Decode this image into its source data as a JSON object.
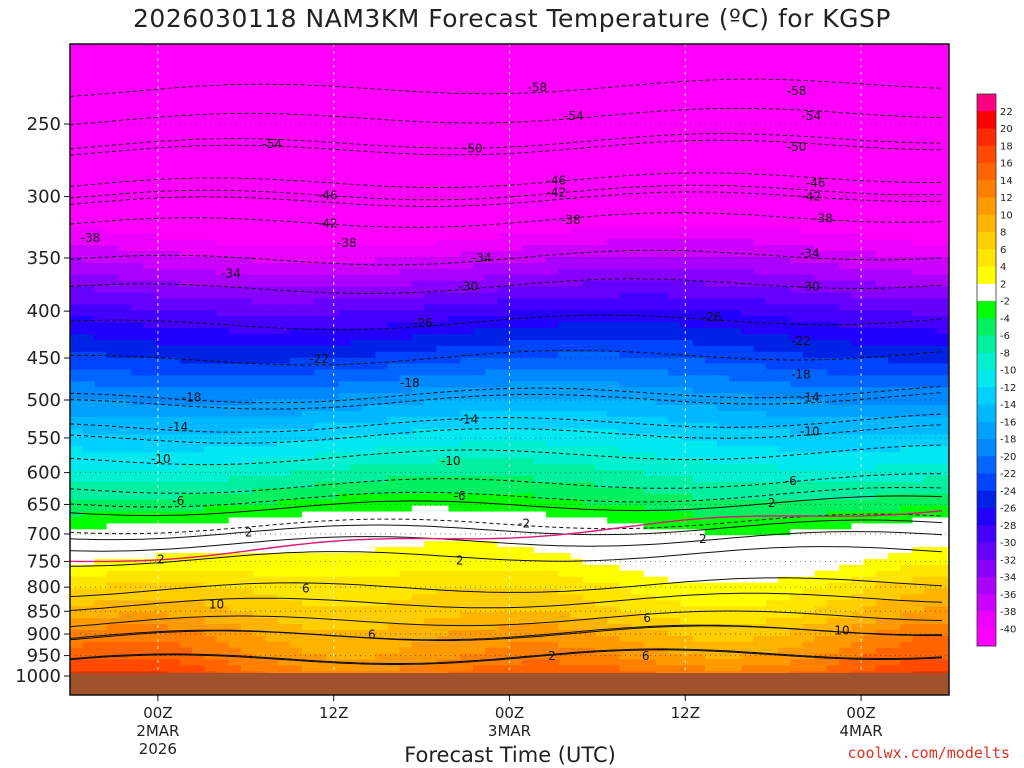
{
  "title": "2026030118 NAM3KM Forecast Temperature (ºC) for KGSP",
  "credit": "coolwx.com/modelts",
  "chart_data": {
    "type": "heatmap",
    "title": "2026030118 NAM3KM Forecast Temperature (ºC) for KGSP",
    "xlabel": "Forecast Time (UTC)",
    "ylabel": "",
    "y_ticks": [
      "250",
      "300",
      "350",
      "400",
      "450",
      "500",
      "550",
      "600",
      "650",
      "700",
      "750",
      "800",
      "850",
      "900",
      "950",
      "1000"
    ],
    "x_ticks": [
      {
        "line1": "00Z",
        "line2": "2MAR",
        "line3": "2026"
      },
      {
        "line1": "12Z",
        "line2": "",
        "line3": ""
      },
      {
        "line1": "00Z",
        "line2": "3MAR",
        "line3": ""
      },
      {
        "line1": "12Z",
        "line2": "",
        "line3": ""
      },
      {
        "line1": "00Z",
        "line2": "4MAR",
        "line3": ""
      }
    ],
    "x_ticks_hours": [
      6,
      18,
      30,
      42,
      54
    ],
    "x_range_hours": [
      0,
      60
    ],
    "y_range_hpa": [
      200,
      1000
    ],
    "colorbar_ticks": [
      "22",
      "20",
      "18",
      "16",
      "14",
      "12",
      "10",
      "8",
      "6",
      "4",
      "2",
      "-2",
      "-4",
      "-6",
      "-8",
      "-10",
      "-12",
      "-14",
      "-16",
      "-18",
      "-20",
      "-22",
      "-24",
      "-26",
      "-28",
      "-30",
      "-32",
      "-34",
      "-36",
      "-38",
      "-40"
    ],
    "colorbar_colors": [
      "#ff007f",
      "#ff0000",
      "#ff2a00",
      "#ff4a00",
      "#ff6400",
      "#ff7f00",
      "#ff9a00",
      "#ffb400",
      "#ffce00",
      "#ffe600",
      "#ffff00",
      "#ffffff",
      "#00ff00",
      "#00f060",
      "#00f0a0",
      "#00f0d0",
      "#00e8f0",
      "#00d0ff",
      "#00b8ff",
      "#00a0ff",
      "#0088ff",
      "#0066ff",
      "#0044ff",
      "#0022e6",
      "#2200ff",
      "#4400ff",
      "#6600ff",
      "#8800ff",
      "#aa00ff",
      "#cc00ff",
      "#ee00ff",
      "#ff00ff"
    ],
    "ground_color": "#a0522d",
    "contour_labels": [
      {
        "text": "-58",
        "t": 31.9,
        "p": 228
      },
      {
        "text": "-58",
        "t": 49.6,
        "p": 230
      },
      {
        "text": "-54",
        "t": 34.4,
        "p": 245
      },
      {
        "text": "-54",
        "t": 50.6,
        "p": 245
      },
      {
        "text": "-54",
        "t": 13.8,
        "p": 263
      },
      {
        "text": "-50",
        "t": 27.5,
        "p": 266
      },
      {
        "text": "-50",
        "t": 49.6,
        "p": 265
      },
      {
        "text": "-46",
        "t": 33.2,
        "p": 288
      },
      {
        "text": "-46",
        "t": 50.9,
        "p": 290
      },
      {
        "text": "-46",
        "t": 17.6,
        "p": 299
      },
      {
        "text": "-42",
        "t": 33.2,
        "p": 297
      },
      {
        "text": "-42",
        "t": 50.6,
        "p": 300
      },
      {
        "text": "-42",
        "t": 17.6,
        "p": 321
      },
      {
        "text": "-38",
        "t": 34.2,
        "p": 318
      },
      {
        "text": "-38",
        "t": 51.4,
        "p": 317
      },
      {
        "text": "-38",
        "t": 1.4,
        "p": 333
      },
      {
        "text": "-38",
        "t": 18.9,
        "p": 337
      },
      {
        "text": "-34",
        "t": 28.1,
        "p": 350
      },
      {
        "text": "-34",
        "t": 50.5,
        "p": 346
      },
      {
        "text": "-34",
        "t": 11.0,
        "p": 364
      },
      {
        "text": "-30",
        "t": 27.2,
        "p": 376
      },
      {
        "text": "-30",
        "t": 50.5,
        "p": 376
      },
      {
        "text": "-26",
        "t": 24.1,
        "p": 412
      },
      {
        "text": "-26",
        "t": 43.8,
        "p": 406
      },
      {
        "text": "-22",
        "t": 17.0,
        "p": 451
      },
      {
        "text": "-22",
        "t": 49.9,
        "p": 431
      },
      {
        "text": "-18",
        "t": 8.3,
        "p": 497
      },
      {
        "text": "-18",
        "t": 23.2,
        "p": 479
      },
      {
        "text": "-18",
        "t": 49.9,
        "p": 469
      },
      {
        "text": "-14",
        "t": 7.4,
        "p": 535
      },
      {
        "text": "-14",
        "t": 27.2,
        "p": 525
      },
      {
        "text": "-14",
        "t": 50.5,
        "p": 497
      },
      {
        "text": "-10",
        "t": 6.2,
        "p": 580
      },
      {
        "text": "-10",
        "t": 26.0,
        "p": 583
      },
      {
        "text": "-10",
        "t": 50.5,
        "p": 541
      },
      {
        "text": "-6",
        "t": 7.4,
        "p": 644
      },
      {
        "text": "-6",
        "t": 26.6,
        "p": 636
      },
      {
        "text": "-6",
        "t": 49.2,
        "p": 613
      },
      {
        "text": "2",
        "t": 47.9,
        "p": 648
      },
      {
        "text": "-2",
        "t": 31.0,
        "p": 682
      },
      {
        "text": "2",
        "t": 12.2,
        "p": 697
      },
      {
        "text": "2",
        "t": 43.2,
        "p": 709
      },
      {
        "text": "2",
        "t": 6.2,
        "p": 746
      },
      {
        "text": "2",
        "t": 26.6,
        "p": 748
      },
      {
        "text": "6",
        "t": 16.1,
        "p": 803
      },
      {
        "text": "6",
        "t": 39.4,
        "p": 864
      },
      {
        "text": "10",
        "t": 10.0,
        "p": 836
      },
      {
        "text": "6",
        "t": 20.6,
        "p": 901
      },
      {
        "text": "10",
        "t": 52.7,
        "p": 892
      },
      {
        "text": "6",
        "t": 39.3,
        "p": 951
      },
      {
        "text": "2",
        "t": 32.9,
        "p": 951
      }
    ]
  }
}
